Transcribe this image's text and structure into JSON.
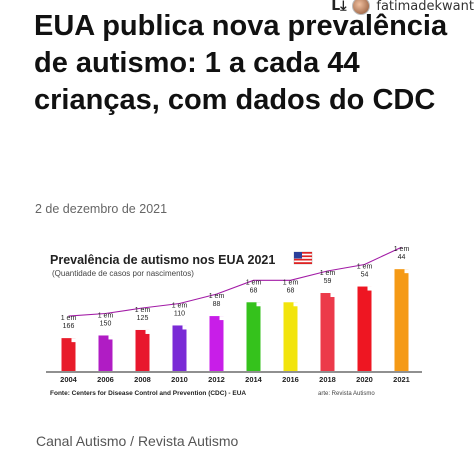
{
  "header": {
    "repost_user": "fatimadekwant",
    "repost_icon": "repost-icon"
  },
  "article": {
    "headline": "EUA publica nova prevalência de autismo: 1 a cada 44 crianças, com dados do CDC",
    "date": "2 de dezembro de 2021",
    "footer": "Canal Autismo / Revista Autismo"
  },
  "chart_data": {
    "type": "bar",
    "title": "Prevalência de autismo nos EUA 2021",
    "subtitle": "(Quantidade de casos por nascimentos)",
    "categories": [
      "2004",
      "2006",
      "2008",
      "2010",
      "2012",
      "2014",
      "2016",
      "2018",
      "2020",
      "2021"
    ],
    "series": [
      {
        "values": [
          166,
          150,
          125,
          110,
          88,
          68,
          68,
          59,
          54,
          44
        ]
      }
    ],
    "data_labels": [
      [
        "1 em",
        "166"
      ],
      [
        "1 em",
        "150"
      ],
      [
        "1 em",
        "125"
      ],
      [
        "1 em",
        "110"
      ],
      [
        "1 em",
        "88"
      ],
      [
        "1 em",
        "68"
      ],
      [
        "1 em",
        "68"
      ],
      [
        "1 em",
        "59"
      ],
      [
        "1 em",
        "54"
      ],
      [
        "1 em",
        "44"
      ]
    ],
    "bar_colors": [
      "#e81c2a",
      "#b01cc4",
      "#e8172d",
      "#7a2ad6",
      "#c81ee8",
      "#35c21c",
      "#f2e40c",
      "#ec3a4a",
      "#ee1622",
      "#f59a16"
    ],
    "trend_line_color": "#a21ba6",
    "flag_icon": "us-flag-icon",
    "source": "Fonte: Centers for Disease Control and Prevention (CDC) - EUA",
    "credit": "arte: Revista Autismo",
    "grid": false,
    "legend": "none"
  }
}
